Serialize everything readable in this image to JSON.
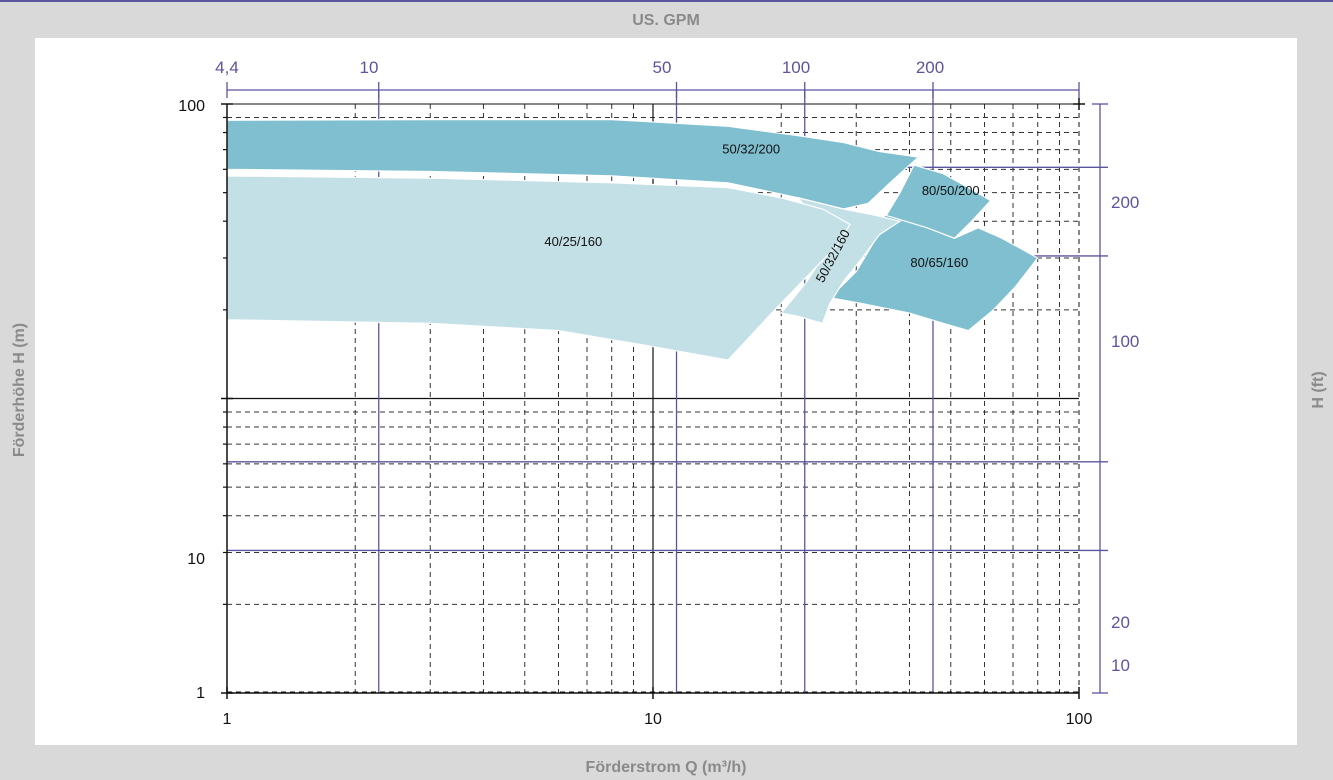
{
  "chart_data": {
    "type": "area",
    "title": "",
    "xlabel": "Förderstrom Q (m³/h)",
    "ylabel": "Förderhöhe H (m)",
    "x2label": "US. GPM",
    "y2label": "H (ft)",
    "x_scale": "log",
    "y_scale": "log",
    "xlim": [
      1,
      100
    ],
    "ylim": [
      1,
      100
    ],
    "x_ticks": [
      "1",
      "10",
      "100"
    ],
    "y_ticks": [
      "1",
      "10",
      "100"
    ],
    "x2_ticks": [
      "4,4",
      "10",
      "50",
      "100",
      "200"
    ],
    "y2_ticks": [
      "10",
      "20",
      "100",
      "200"
    ],
    "grid": true,
    "colors": {
      "dark_region": "#7fbfcf",
      "light_region": "#c3e0e7",
      "secondary_axis": "#5b55a0",
      "background": "#d9d9d9",
      "plot_background": "#ffffff"
    },
    "series": [
      {
        "name": "50/32/200",
        "fill": "dark",
        "polygon": [
          [
            1,
            88
          ],
          [
            3,
            88.5
          ],
          [
            8,
            88.5
          ],
          [
            15,
            84
          ],
          [
            22,
            78
          ],
          [
            28,
            74
          ],
          [
            34,
            69
          ],
          [
            42,
            66
          ],
          [
            40,
            62
          ],
          [
            36,
            54
          ],
          [
            32,
            46
          ],
          [
            28,
            44
          ],
          [
            22,
            48
          ],
          [
            15,
            54
          ],
          [
            8,
            57
          ],
          [
            3,
            59
          ],
          [
            1,
            60
          ]
        ]
      },
      {
        "name": "80/50/200",
        "fill": "dark",
        "polygon": [
          [
            41,
            62
          ],
          [
            48,
            58
          ],
          [
            55,
            52
          ],
          [
            62,
            47
          ],
          [
            56,
            40
          ],
          [
            51,
            35
          ],
          [
            46,
            37
          ],
          [
            40,
            39
          ],
          [
            35,
            41
          ],
          [
            38,
            50
          ]
        ]
      },
      {
        "name": "80/65/160",
        "fill": "dark",
        "polygon": [
          [
            35,
            42
          ],
          [
            44,
            38
          ],
          [
            51,
            35
          ],
          [
            58,
            38
          ],
          [
            66,
            35
          ],
          [
            80,
            30
          ],
          [
            71,
            24
          ],
          [
            63,
            20
          ],
          [
            55,
            17
          ],
          [
            48,
            18
          ],
          [
            40,
            19.5
          ],
          [
            31,
            21
          ],
          [
            26,
            22
          ],
          [
            30,
            27
          ],
          [
            33,
            34
          ]
        ]
      },
      {
        "name": "50/32/160",
        "fill": "light",
        "polygon": [
          [
            22,
            48
          ],
          [
            28,
            44
          ],
          [
            33,
            42
          ],
          [
            38,
            40
          ],
          [
            34,
            36
          ],
          [
            31,
            30
          ],
          [
            28,
            25
          ],
          [
            26,
            21
          ],
          [
            25,
            18
          ],
          [
            22,
            19
          ],
          [
            20,
            19.5
          ],
          [
            23,
            25
          ],
          [
            26,
            33
          ]
        ]
      },
      {
        "name": "40/25/160",
        "fill": "light",
        "polygon": [
          [
            1,
            57
          ],
          [
            3,
            56
          ],
          [
            8,
            54
          ],
          [
            15,
            52
          ],
          [
            20,
            48
          ],
          [
            25,
            44
          ],
          [
            29,
            39
          ],
          [
            27,
            33
          ],
          [
            23,
            26
          ],
          [
            19,
            19.5
          ],
          [
            15,
            13.5
          ],
          [
            10,
            15
          ],
          [
            6,
            17
          ],
          [
            3,
            18
          ],
          [
            1,
            18.5
          ]
        ]
      }
    ]
  }
}
